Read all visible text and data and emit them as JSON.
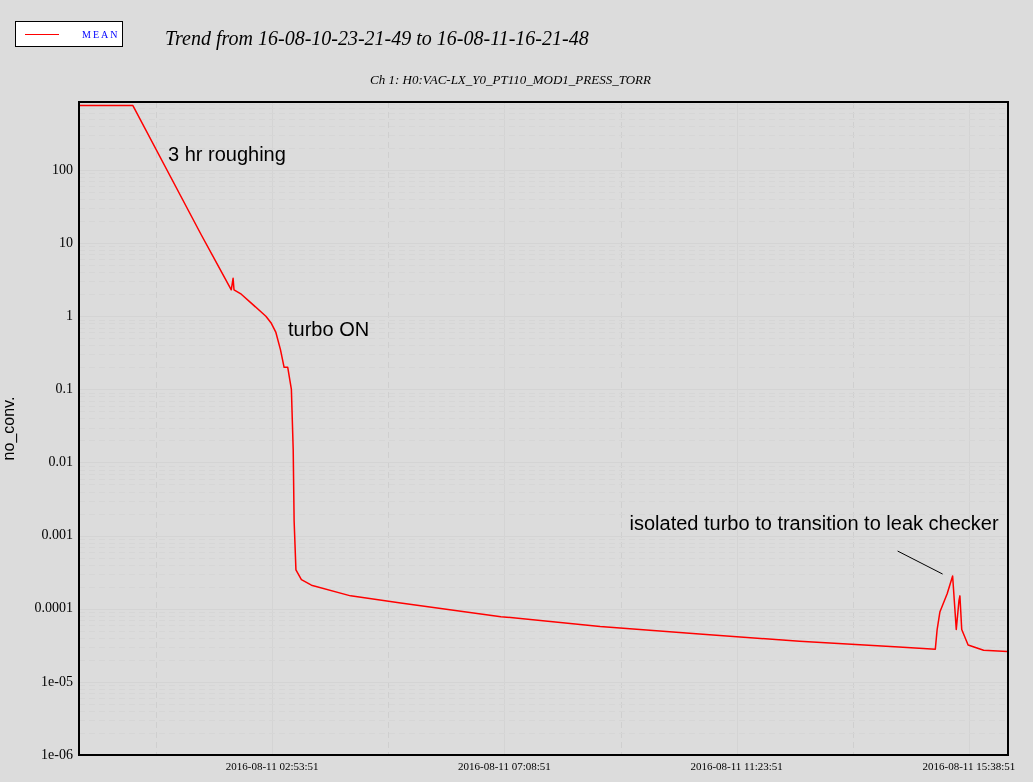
{
  "chart_data": {
    "type": "line",
    "title": "Trend from 16-08-10-23-21-49 to 16-08-11-16-21-48",
    "subtitle": "Ch 1: H0:VAC-LX_Y0_PT110_MOD1_PRESS_TORR",
    "ylabel": "no_conv.",
    "x": [
      "2016-08-10T23:22",
      "2016-08-11T00:21",
      "2016-08-11T01:36",
      "2016-08-11T02:09",
      "2016-08-11T02:11",
      "2016-08-11T02:12",
      "2016-08-11T02:20",
      "2016-08-11T02:47",
      "2016-08-11T02:53",
      "2016-08-11T02:58",
      "2016-08-11T03:03",
      "2016-08-11T03:07",
      "2016-08-11T03:11",
      "2016-08-11T03:15",
      "2016-08-11T03:17",
      "2016-08-11T03:18",
      "2016-08-11T03:20",
      "2016-08-11T03:26",
      "2016-08-11T03:37",
      "2016-08-11T04:20",
      "2016-08-11T05:15",
      "2016-08-11T07:05",
      "2016-08-11T08:54",
      "2016-08-11T10:43",
      "2016-08-11T12:33",
      "2016-08-11T14:22",
      "2016-08-11T15:02",
      "2016-08-11T15:04",
      "2016-08-11T15:07",
      "2016-08-11T15:15",
      "2016-08-11T15:21",
      "2016-08-11T15:25",
      "2016-08-11T15:28",
      "2016-08-11T15:29",
      "2016-08-11T15:31",
      "2016-08-11T15:38",
      "2016-08-11T15:55",
      "2016-08-11T16:21"
    ],
    "series": [
      {
        "name": "MEAN",
        "color": "#ff0000",
        "values": [
          760,
          760,
          13,
          2.3,
          3.3,
          2.3,
          2.0,
          1.0,
          0.8,
          0.6,
          0.35,
          0.2,
          0.2,
          0.1,
          0.015,
          0.0016,
          0.00034,
          0.00025,
          0.00021,
          0.00015,
          0.00012,
          7.8e-05,
          5.7e-05,
          4.5e-05,
          3.6e-05,
          3e-05,
          2.8e-05,
          5.2e-05,
          9e-05,
          0.00016,
          0.00028,
          5.2e-05,
          0.00013,
          0.00015,
          5.2e-05,
          3.2e-05,
          2.7e-05,
          2.6e-05
        ]
      }
    ],
    "xlim": [
      "2016-08-10T23:21:49",
      "2016-08-11T16:21:48"
    ],
    "xticks": [
      {
        "value": "2016-08-11T00:46:21",
        "label": null
      },
      {
        "value": "2016-08-11T02:53:51",
        "label": "2016-08-11 02:53:51"
      },
      {
        "value": "2016-08-11T05:01:21",
        "label": null
      },
      {
        "value": "2016-08-11T07:08:51",
        "label": "2016-08-11 07:08:51"
      },
      {
        "value": "2016-08-11T09:16:21",
        "label": null
      },
      {
        "value": "2016-08-11T11:23:51",
        "label": "2016-08-11 11:23:51"
      },
      {
        "value": "2016-08-11T13:31:21",
        "label": null
      },
      {
        "value": "2016-08-11T15:38:51",
        "label": "2016-08-11 15:38:51"
      }
    ],
    "log": "y",
    "ylim": [
      1e-06,
      850
    ],
    "yticks": [
      {
        "value": 1e-06,
        "label": "1e-06"
      },
      {
        "value": 2e-06,
        "label": null
      },
      {
        "value": 3e-06,
        "label": null
      },
      {
        "value": 4e-06,
        "label": null
      },
      {
        "value": 5e-06,
        "label": null
      },
      {
        "value": 6e-06,
        "label": null
      },
      {
        "value": 7e-06,
        "label": null
      },
      {
        "value": 8e-06,
        "label": null
      },
      {
        "value": 9e-06,
        "label": null
      },
      {
        "value": 1e-05,
        "label": "1e-05"
      },
      {
        "value": 2e-05,
        "label": null
      },
      {
        "value": 3e-05,
        "label": null
      },
      {
        "value": 4e-05,
        "label": null
      },
      {
        "value": 5e-05,
        "label": null
      },
      {
        "value": 6e-05,
        "label": null
      },
      {
        "value": 7e-05,
        "label": null
      },
      {
        "value": 8e-05,
        "label": null
      },
      {
        "value": 9e-05,
        "label": null
      },
      0.0001,
      {
        "value": 0.0002,
        "label": null
      },
      {
        "value": 0.0003,
        "label": null
      },
      {
        "value": 0.0004,
        "label": null
      },
      {
        "value": 0.0005,
        "label": null
      },
      {
        "value": 0.0006,
        "label": null
      },
      {
        "value": 0.0007,
        "label": null
      },
      {
        "value": 0.0008,
        "label": null
      },
      {
        "value": 0.0009,
        "label": null
      },
      0.001,
      {
        "value": 0.002,
        "label": null
      },
      {
        "value": 0.003,
        "label": null
      },
      {
        "value": 0.004,
        "label": null
      },
      {
        "value": 0.005,
        "label": null
      },
      {
        "value": 0.006,
        "label": null
      },
      {
        "value": 0.007,
        "label": null
      },
      {
        "value": 0.008,
        "label": null
      },
      {
        "value": 0.009,
        "label": null
      },
      0.01,
      {
        "value": 0.02,
        "label": null
      },
      {
        "value": 0.03,
        "label": null
      },
      {
        "value": 0.04,
        "label": null
      },
      {
        "value": 0.05,
        "label": null
      },
      {
        "value": 0.06,
        "label": null
      },
      {
        "value": 0.07,
        "label": null
      },
      {
        "value": 0.08,
        "label": null
      },
      {
        "value": 0.09,
        "label": null
      },
      0.1,
      {
        "value": 0.2,
        "label": null
      },
      {
        "value": 0.3,
        "label": null
      },
      {
        "value": 0.4,
        "label": null
      },
      {
        "value": 0.5,
        "label": null
      },
      {
        "value": 0.6,
        "label": null
      },
      {
        "value": 0.7,
        "label": null
      },
      {
        "value": 0.8,
        "label": null
      },
      {
        "value": 0.9,
        "label": null
      },
      1,
      {
        "value": 2,
        "label": null
      },
      {
        "value": 3,
        "label": null
      },
      {
        "value": 4,
        "label": null
      },
      {
        "value": 5,
        "label": null
      },
      {
        "value": 6,
        "label": null
      },
      {
        "value": 7,
        "label": null
      },
      {
        "value": 8,
        "label": null
      },
      {
        "value": 9,
        "label": null
      },
      10,
      {
        "value": 20,
        "label": null
      },
      {
        "value": 30,
        "label": null
      },
      {
        "value": 40,
        "label": null
      },
      {
        "value": 50,
        "label": null
      },
      {
        "value": 60,
        "label": null
      },
      {
        "value": 70,
        "label": null
      },
      {
        "value": 80,
        "label": null
      },
      {
        "value": 90,
        "label": null
      },
      100,
      {
        "value": 200,
        "label": null
      },
      {
        "value": 300,
        "label": null
      },
      {
        "value": 400,
        "label": null
      },
      {
        "value": 500,
        "label": null
      },
      {
        "value": 600,
        "label": null
      },
      {
        "value": 700,
        "label": null
      },
      {
        "value": 800,
        "label": null
      }
    ],
    "grid": true,
    "legend": "top left",
    "marker": "none",
    "line_style": "solid",
    "annotations": [
      "3 hr roughing",
      "turbo ON",
      {
        "text": "isolated turbo to transition to leak checker",
        "x": "2016-08-11T15:21",
        "y": 0.00028
      }
    ]
  }
}
